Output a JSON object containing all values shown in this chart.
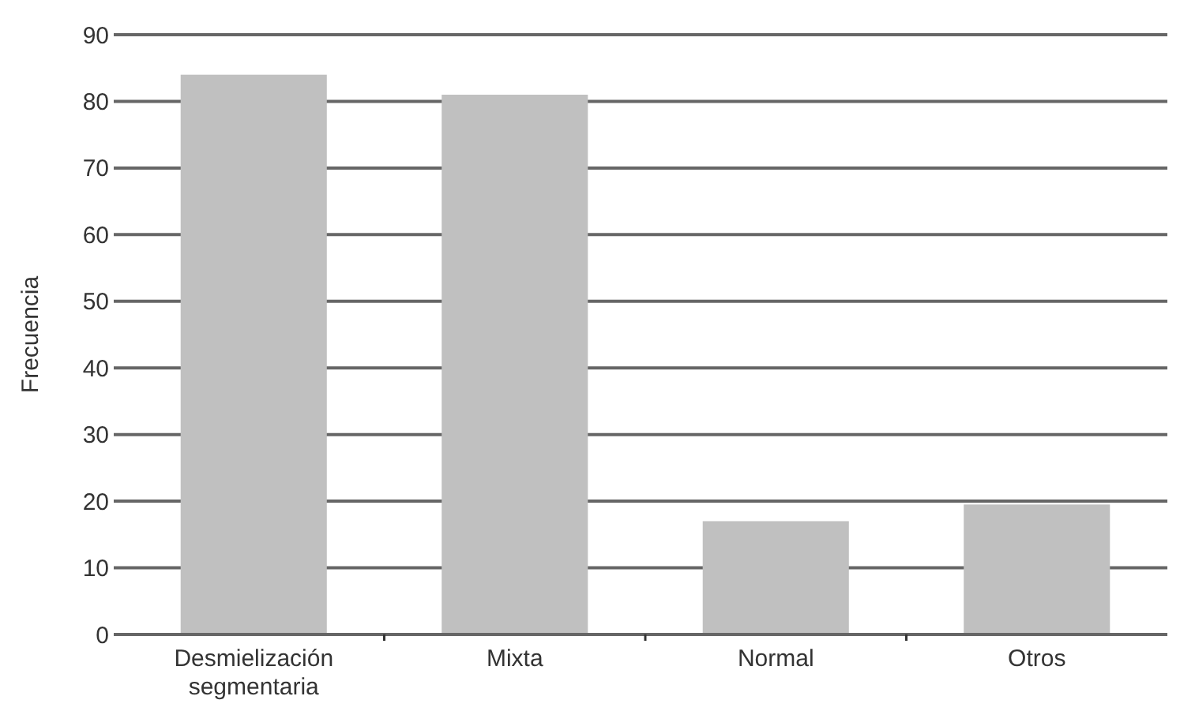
{
  "chart_data": {
    "type": "bar",
    "ylabel": "Frecuencia",
    "categories": [
      "Desmielización segmentaria",
      "Mixta",
      "Normal",
      "Otros"
    ],
    "values": [
      84,
      81,
      17,
      19.5
    ],
    "color": "#c0c0c0",
    "ylim": [
      0,
      90
    ],
    "yticks": [
      0,
      10,
      20,
      30,
      40,
      50,
      60,
      70,
      80,
      90
    ],
    "grid": "y"
  }
}
